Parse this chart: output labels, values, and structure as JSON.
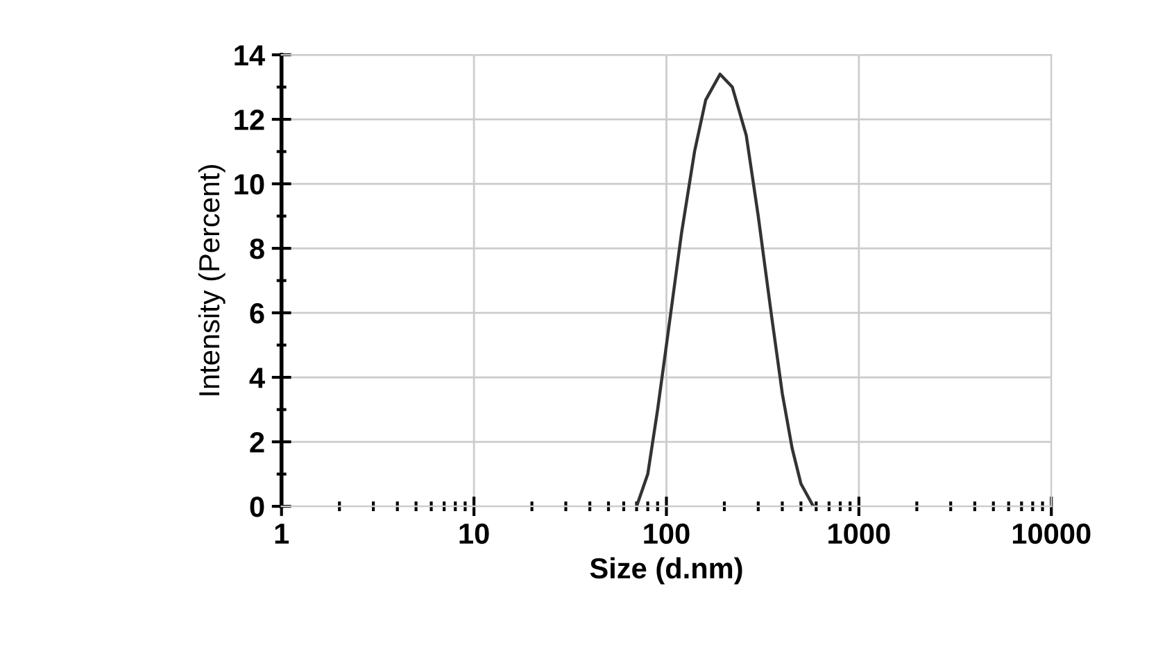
{
  "chart_data": {
    "type": "line",
    "xlabel": "Size (d.nm)",
    "ylabel": "Intensity (Percent)",
    "log": "x",
    "x": [
      70,
      80,
      90,
      100,
      120,
      140,
      160,
      190,
      220,
      260,
      300,
      350,
      400,
      450,
      500,
      580
    ],
    "series": [
      {
        "color": "#333333",
        "values": [
          0,
          1,
          3,
          5,
          8.5,
          11,
          12.6,
          13.4,
          13,
          11.5,
          9,
          6,
          3.5,
          1.8,
          0.7,
          0
        ]
      }
    ],
    "xlim": [
      1,
      10000
    ],
    "xticks": [
      1,
      10,
      100,
      1000,
      10000
    ],
    "ylim": [
      0,
      14
    ],
    "yticks": [
      0,
      2,
      4,
      6,
      8,
      10,
      12,
      14
    ],
    "grid": true,
    "marker": "none",
    "line_style": "solid"
  }
}
